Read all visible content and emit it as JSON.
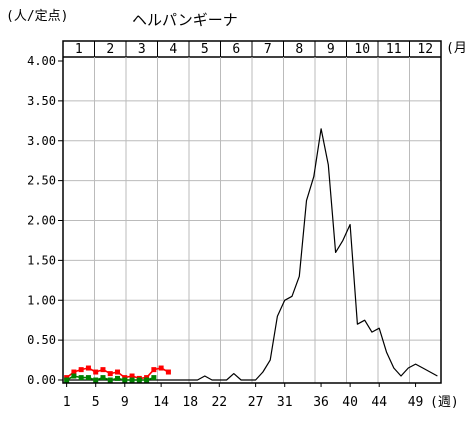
{
  "chart_data": {
    "type": "line",
    "title": "ヘルパンギーナ",
    "ylabel": "(人/定点)",
    "xlabel": "(週)",
    "month_axis_label": "(月)",
    "ylim": [
      0,
      4
    ],
    "grid": true,
    "y_ticks": [
      "0.00",
      "0.50",
      "1.00",
      "1.50",
      "2.00",
      "2.50",
      "3.00",
      "3.50",
      "4.00"
    ],
    "x_ticks": [
      {
        "week": 1,
        "label": "1"
      },
      {
        "week": 5,
        "label": "5"
      },
      {
        "week": 9,
        "label": "9"
      },
      {
        "week": 14,
        "label": "14"
      },
      {
        "week": 18,
        "label": "18"
      },
      {
        "week": 22,
        "label": "22"
      },
      {
        "week": 27,
        "label": "27"
      },
      {
        "week": 31,
        "label": "31"
      },
      {
        "week": 36,
        "label": "36"
      },
      {
        "week": 40,
        "label": "40"
      },
      {
        "week": 44,
        "label": "44"
      },
      {
        "week": 49,
        "label": "49"
      }
    ],
    "months": [
      "1",
      "2",
      "3",
      "4",
      "5",
      "6",
      "7",
      "8",
      "9",
      "10",
      "11",
      "12"
    ],
    "series": [
      {
        "color": "#000000",
        "marker": "none",
        "x": [
          1,
          2,
          3,
          4,
          5,
          6,
          7,
          8,
          9,
          10,
          11,
          12,
          13,
          14,
          15,
          16,
          17,
          18,
          19,
          20,
          21,
          22,
          23,
          24,
          25,
          26,
          27,
          28,
          29,
          30,
          31,
          32,
          33,
          34,
          35,
          36,
          37,
          38,
          39,
          40,
          41,
          42,
          43,
          44,
          45,
          46,
          47,
          48,
          49,
          50,
          51,
          52
        ],
        "y": [
          0.0,
          0.0,
          0.0,
          0.0,
          0.0,
          0.0,
          0.0,
          0.0,
          0.0,
          0.0,
          0.0,
          0.0,
          0.0,
          0.0,
          0.0,
          0.0,
          0.0,
          0.0,
          0.0,
          0.05,
          0.0,
          0.0,
          0.0,
          0.08,
          0.0,
          0.0,
          0.0,
          0.1,
          0.25,
          0.8,
          1.0,
          1.05,
          1.3,
          2.25,
          2.55,
          3.15,
          2.7,
          1.6,
          1.75,
          1.95,
          0.7,
          0.75,
          0.6,
          0.65,
          0.35,
          0.15,
          0.05,
          0.15,
          0.2,
          0.15,
          0.1,
          0.05
        ]
      },
      {
        "color": "#ff0000",
        "marker": "square",
        "x": [
          1,
          2,
          3,
          4,
          5,
          6,
          7,
          8,
          9,
          10,
          11,
          12,
          13,
          14,
          15
        ],
        "y": [
          0.03,
          0.1,
          0.13,
          0.15,
          0.1,
          0.13,
          0.08,
          0.1,
          0.03,
          0.05,
          0.02,
          0.03,
          0.13,
          0.15,
          0.1
        ]
      },
      {
        "color": "#008000",
        "marker": "square",
        "x": [
          1,
          2,
          3,
          4,
          5,
          6,
          7,
          8,
          9,
          10,
          11,
          12,
          13
        ],
        "y": [
          0.0,
          0.05,
          0.03,
          0.03,
          0.0,
          0.03,
          0.0,
          0.02,
          0.0,
          0.0,
          0.0,
          0.0,
          0.03
        ]
      }
    ]
  }
}
